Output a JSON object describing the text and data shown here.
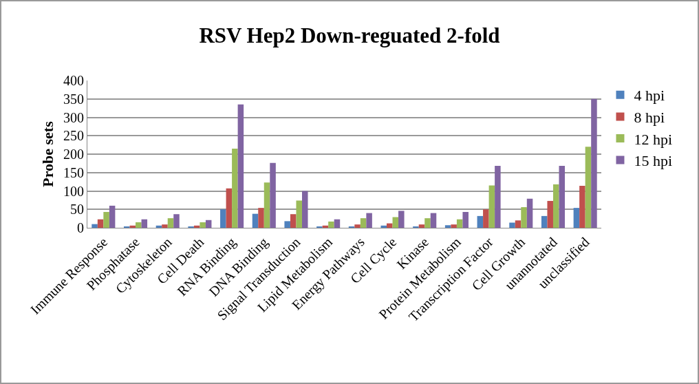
{
  "chart_data": {
    "type": "bar",
    "title": "RSV Hep2 Down-reguated 2-fold",
    "ylabel": "Probe sets",
    "categories": [
      "Immune Response",
      "Phosphatase",
      "Cytoskeleton",
      "Cell Death",
      "RNA Binding",
      "DNA Binding",
      "Signal Transduction",
      "Lipid Metabolism",
      "Energy Pathways",
      "Cell Cycle",
      "Kinase",
      "Protein Metabolism",
      "Transcription Factor",
      "Cell Growth",
      "unannotated",
      "unclassified"
    ],
    "series": [
      {
        "name": "4 hpi",
        "color": "#4f81bd",
        "values": [
          10,
          3,
          6,
          3,
          50,
          38,
          18,
          3,
          3,
          6,
          3,
          7,
          32,
          14,
          32,
          54
        ]
      },
      {
        "name": "8 hpi",
        "color": "#c0504d",
        "values": [
          23,
          6,
          9,
          6,
          107,
          54,
          37,
          6,
          9,
          12,
          9,
          9,
          50,
          20,
          73,
          114
        ]
      },
      {
        "name": "12 hpi",
        "color": "#9bbb59",
        "values": [
          43,
          15,
          26,
          15,
          215,
          123,
          74,
          17,
          26,
          29,
          26,
          23,
          115,
          56,
          118,
          220
        ]
      },
      {
        "name": "15 hpi",
        "color": "#8064a2",
        "values": [
          60,
          23,
          37,
          21,
          335,
          176,
          100,
          23,
          40,
          46,
          40,
          43,
          168,
          79,
          168,
          350
        ]
      }
    ],
    "ylim": [
      0,
      400
    ],
    "yticks": [
      0,
      50,
      100,
      150,
      200,
      250,
      300,
      350,
      400
    ],
    "grid": "y",
    "legend": "right"
  }
}
